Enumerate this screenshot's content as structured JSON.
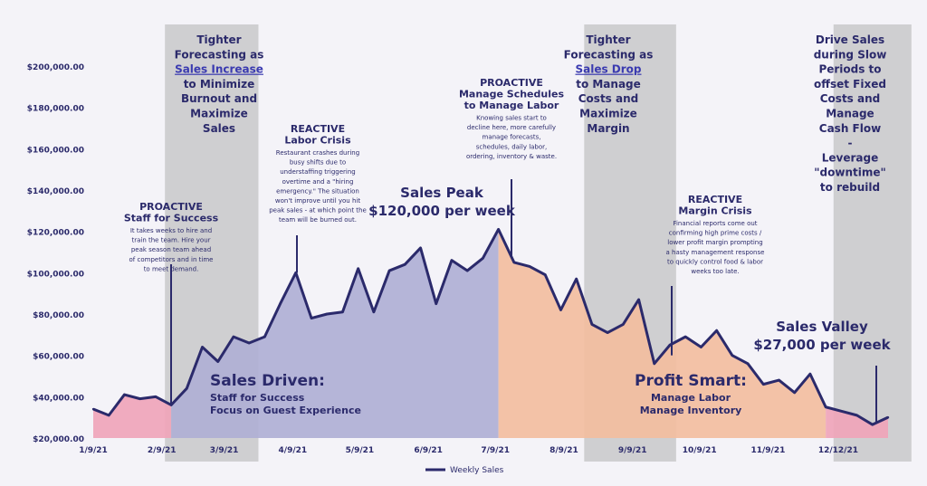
{
  "chart_data": {
    "type": "area",
    "title": "",
    "xlabel": "",
    "ylabel": "",
    "ylim": [
      20000,
      210000
    ],
    "y_ticks": [
      20000,
      40000,
      60000,
      80000,
      100000,
      120000,
      140000,
      160000,
      180000,
      200000
    ],
    "y_tick_labels": [
      "$20,000.00",
      "$40,000.00",
      "$60,000.00",
      "$80,000.00",
      "$100,000.00",
      "$120,000.00",
      "$140,000.00",
      "$160,000.00",
      "$180,000.00",
      "$200,000.00"
    ],
    "x_tick_labels": [
      {
        "label": "1/9/21",
        "week": 0
      },
      {
        "label": "2/9/21",
        "week": 4.4
      },
      {
        "label": "3/9/21",
        "week": 8.4
      },
      {
        "label": "4/9/21",
        "week": 12.8
      },
      {
        "label": "5/9/21",
        "week": 17.1
      },
      {
        "label": "6/9/21",
        "week": 21.5
      },
      {
        "label": "7/9/21",
        "week": 25.8
      },
      {
        "label": "8/9/21",
        "week": 30.2
      },
      {
        "label": "9/9/21",
        "week": 34.6
      },
      {
        "label": "10/9/21",
        "week": 38.9
      },
      {
        "label": "11/9/21",
        "week": 43.3
      },
      {
        "label": "12/12/21",
        "week": 47.8
      }
    ],
    "legend": {
      "label": "Weekly Sales",
      "placement": "bottom-center"
    },
    "series": [
      {
        "name": "Weekly Sales",
        "color": "#2b2a6b",
        "x": [
          0,
          1,
          2,
          3,
          4,
          5,
          6,
          7,
          8,
          9,
          10,
          11,
          12,
          13,
          14,
          15,
          16,
          17,
          18,
          19,
          20,
          21,
          22,
          23,
          24,
          25,
          26,
          27,
          28,
          29,
          30,
          31,
          32,
          33,
          34,
          35,
          36,
          37,
          38,
          39,
          40,
          41,
          42,
          43,
          44,
          45,
          46,
          47,
          48,
          49,
          50,
          51
        ],
        "values": [
          34000,
          31000,
          41000,
          39000,
          40000,
          36000,
          44000,
          64000,
          57000,
          69000,
          66000,
          69000,
          85000,
          100000,
          78000,
          80000,
          81000,
          102000,
          81000,
          101000,
          104000,
          112000,
          85000,
          106000,
          101000,
          107000,
          121000,
          105000,
          103000,
          99000,
          82000,
          97000,
          75000,
          71000,
          75000,
          87000,
          56000,
          65000,
          69000,
          64000,
          72000,
          60000,
          56000,
          46000,
          48000,
          42000,
          51000,
          35000,
          33000,
          31000,
          26500,
          30000
        ]
      }
    ],
    "shaded_periods": [
      {
        "id": "p1",
        "from": 4.6,
        "to": 10.6,
        "lines": [
          {
            "text": "Tighter"
          },
          {
            "text": "Forecasting as"
          },
          {
            "text": "Sales Increase",
            "link": true
          },
          {
            "text": "to Minimize"
          },
          {
            "text": "Burnout and"
          },
          {
            "text": "Maximize"
          },
          {
            "text": "Sales"
          }
        ]
      },
      {
        "id": "p2",
        "from": 31.5,
        "to": 37.4,
        "lines": [
          {
            "text": "Tighter"
          },
          {
            "text": "Forecasting as"
          },
          {
            "text": "Sales Drop ",
            "link": true
          },
          {
            "text": "to Manage"
          },
          {
            "text": "Costs and"
          },
          {
            "text": "Maximize"
          },
          {
            "text": "Margin"
          }
        ]
      },
      {
        "id": "p3",
        "from": 47.5,
        "to": 52.5,
        "lines": [
          {
            "text": "Drive Sales"
          },
          {
            "text": "during Slow"
          },
          {
            "text": "Periods to"
          },
          {
            "text": "offset Fixed"
          },
          {
            "text": "Costs and"
          },
          {
            "text": "Manage"
          },
          {
            "text": "Cash Flow"
          },
          {
            "text": "-"
          },
          {
            "text": "Leverage"
          },
          {
            "text": "\"downtime\""
          },
          {
            "text": "to rebuild"
          }
        ]
      }
    ],
    "area_colors": {
      "pink": "#f0a3b8",
      "purple": "#aeaed4",
      "peach": "#f3bc9d",
      "pink2": "#f0a3b8"
    },
    "annotations": [
      {
        "id": "a1",
        "week": 5,
        "y": 36000,
        "heading": [
          "PROACTIVE",
          "Staff for Success"
        ],
        "body": [
          "It takes weeks to hire and",
          "train the team. Hire your",
          "peak season team ahead",
          "of competitors and in time",
          "to meet demand."
        ]
      },
      {
        "id": "a2",
        "week": 13,
        "y": 100000,
        "heading": [
          "REACTIVE",
          "Labor Crisis"
        ],
        "body": [
          "Restaurant crashes during",
          "busy shifts due to",
          "understaffing triggering",
          "overtime and a \"hiring",
          "emergency.\" The situation",
          "won't improve until you hit",
          "peak sales - at which point the",
          "team will be burned out."
        ]
      },
      {
        "id": "a3",
        "week": 26.5,
        "y": 120000,
        "heading": [
          "PROACTIVE",
          "Manage Schedules",
          "to Manage Labor"
        ],
        "body": [
          "Knowing sales start to",
          "decline here, more carefully",
          "manage forecasts,",
          "schedules, daily labor,",
          "ordering, inventory & waste."
        ]
      },
      {
        "id": "a4",
        "week": 37.2,
        "y": 60000,
        "heading": [
          "REACTIVE",
          "Margin Crisis"
        ],
        "body": [
          "Financial reports come out",
          "confirming high prime costs /",
          "lower profit margin prompting",
          "a hasty management response",
          "to quickly control food & labor",
          "weeks too late."
        ]
      },
      {
        "id": "a5",
        "week": 50.2,
        "y": 27000,
        "heading": [],
        "body": []
      }
    ],
    "callouts": [
      {
        "id": "peak",
        "lines": [
          "Sales Peak",
          "$120,000 per week"
        ]
      },
      {
        "id": "valley",
        "lines": [
          "Sales Valley",
          "$27,000 per week"
        ]
      }
    ],
    "region_labels": [
      {
        "id": "sales-driven",
        "title": "Sales Driven:",
        "sub": [
          "Staff for Success",
          "Focus on Guest Experience"
        ]
      },
      {
        "id": "profit-smart",
        "title": "Profit Smart:",
        "sub": [
          "Manage Labor",
          "Manage Inventory"
        ]
      }
    ]
  }
}
